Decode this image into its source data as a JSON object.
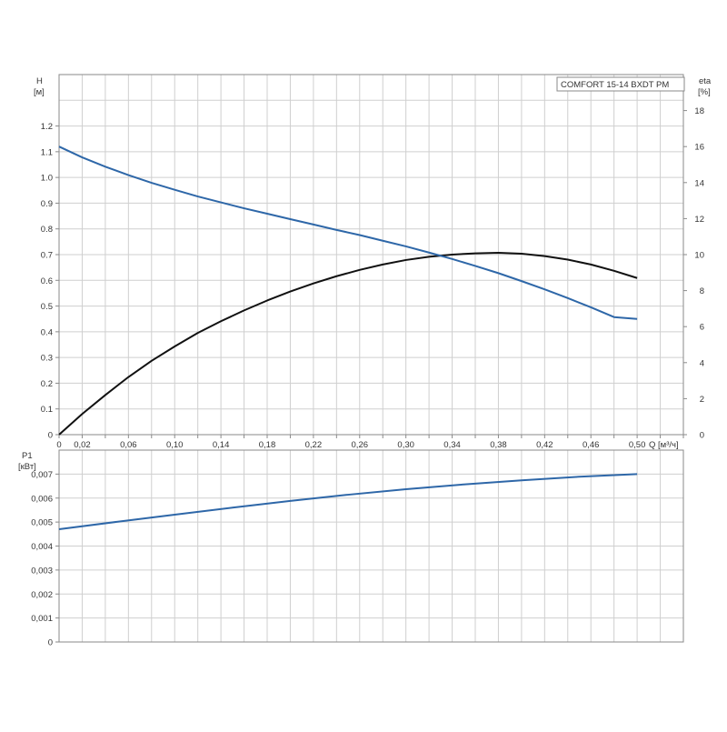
{
  "colors": {
    "head_curve": "#2e67a8",
    "eta_curve": "#111111",
    "power_curve": "#2e67a8",
    "grid": "#cfcfcf",
    "frame": "#8a8a8a",
    "background": "#ffffff"
  },
  "chart_data": [
    {
      "type": "line",
      "legend": "COMFORT 15-14 BXDT PM",
      "legend_position": "top-right",
      "grid": true,
      "xlabel": "Q [м³/ч]",
      "x_tick_labels": [
        "0",
        "0,02",
        "0,06",
        "0,10",
        "0,14",
        "0,18",
        "0,22",
        "0,26",
        "0,30",
        "0,34",
        "0,38",
        "0,42",
        "0,46",
        "0,50"
      ],
      "x_tick_values": [
        0,
        0.02,
        0.06,
        0.1,
        0.14,
        0.18,
        0.22,
        0.26,
        0.3,
        0.34,
        0.38,
        0.42,
        0.46,
        0.5
      ],
      "xlim": [
        0,
        0.54
      ],
      "ylabel_left": "H",
      "ylabel_left_unit": "[м]",
      "y_left_tick_labels": [
        "0",
        "0.1",
        "0.2",
        "0.3",
        "0.4",
        "0.5",
        "0.6",
        "0.7",
        "0.8",
        "0.9",
        "1.0",
        "1.1",
        "1.2"
      ],
      "y_left_tick_values": [
        0,
        0.1,
        0.2,
        0.3,
        0.4,
        0.5,
        0.6,
        0.7,
        0.8,
        0.9,
        1.0,
        1.1,
        1.2
      ],
      "ylim_left": [
        0,
        1.4
      ],
      "ylabel_right": "eta",
      "ylabel_right_unit": "[%]",
      "y_right_tick_labels": [
        "0",
        "2",
        "4",
        "6",
        "8",
        "10",
        "12",
        "14",
        "16",
        "18"
      ],
      "y_right_tick_values": [
        0,
        2,
        4,
        6,
        8,
        10,
        12,
        14,
        16,
        18
      ],
      "ylim_right": [
        0,
        20
      ],
      "series": [
        {
          "axis": "left",
          "x": [
            0,
            0.02,
            0.04,
            0.06,
            0.08,
            0.1,
            0.12,
            0.14,
            0.16,
            0.18,
            0.2,
            0.22,
            0.24,
            0.26,
            0.28,
            0.3,
            0.32,
            0.34,
            0.36,
            0.38,
            0.4,
            0.42,
            0.44,
            0.46,
            0.48,
            0.5
          ],
          "values": [
            1.12,
            1.078,
            1.042,
            1.009,
            0.979,
            0.952,
            0.926,
            0.903,
            0.88,
            0.859,
            0.838,
            0.817,
            0.796,
            0.776,
            0.754,
            0.732,
            0.708,
            0.683,
            0.656,
            0.628,
            0.597,
            0.565,
            0.531,
            0.495,
            0.457,
            0.45
          ]
        },
        {
          "axis": "right",
          "x": [
            0,
            0.02,
            0.04,
            0.06,
            0.08,
            0.1,
            0.12,
            0.14,
            0.16,
            0.18,
            0.2,
            0.22,
            0.24,
            0.26,
            0.28,
            0.3,
            0.32,
            0.34,
            0.36,
            0.38,
            0.4,
            0.42,
            0.44,
            0.46,
            0.48,
            0.5
          ],
          "values": [
            0,
            1.15,
            2.2,
            3.2,
            4.1,
            4.9,
            5.65,
            6.3,
            6.9,
            7.45,
            7.95,
            8.4,
            8.8,
            9.15,
            9.45,
            9.7,
            9.88,
            10.0,
            10.07,
            10.1,
            10.05,
            9.92,
            9.72,
            9.45,
            9.1,
            8.7
          ]
        }
      ]
    },
    {
      "type": "line",
      "grid": true,
      "ylabel": "P1",
      "ylabel_unit": "[кВт]",
      "y_tick_labels": [
        "0",
        "0,001",
        "0,002",
        "0,003",
        "0,004",
        "0,005",
        "0,006",
        "0,007"
      ],
      "y_tick_values": [
        0,
        0.001,
        0.002,
        0.003,
        0.004,
        0.005,
        0.006,
        0.007
      ],
      "ylim": [
        0,
        0.008
      ],
      "xlim": [
        0,
        0.54
      ],
      "series": [
        {
          "x": [
            0,
            0.05,
            0.1,
            0.15,
            0.2,
            0.25,
            0.3,
            0.35,
            0.4,
            0.45,
            0.5
          ],
          "values": [
            0.0047,
            0.00501,
            0.00531,
            0.0056,
            0.00588,
            0.00614,
            0.00637,
            0.00657,
            0.00674,
            0.00689,
            0.007
          ]
        }
      ]
    }
  ]
}
